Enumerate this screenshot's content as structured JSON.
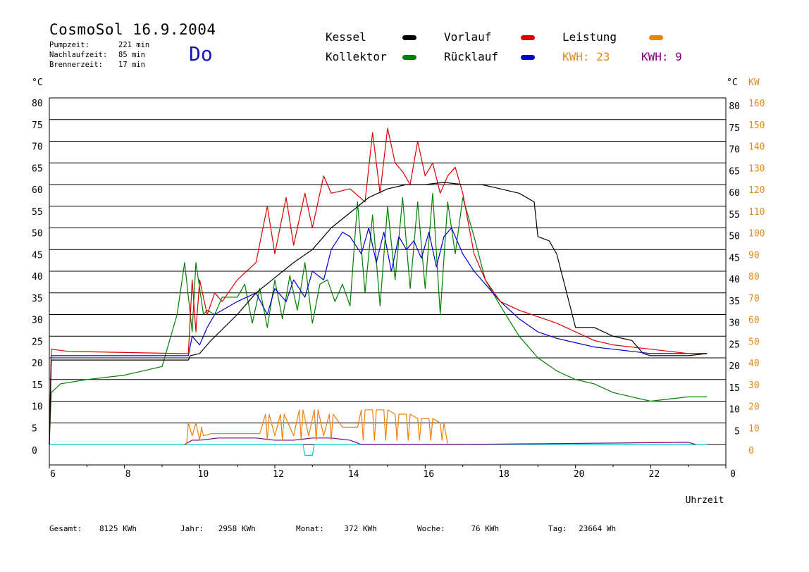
{
  "header": {
    "title": "CosmoSol 16.9.2004",
    "day": "Do",
    "info": [
      {
        "label": "Pumpzeit:",
        "value": "221 min"
      },
      {
        "label": "Nachlaufzeit:",
        "value": "85 min"
      },
      {
        "label": "Brennerzeit:",
        "value": "17 min"
      }
    ]
  },
  "legend": {
    "kessel": {
      "label": "Kessel",
      "color": "#000000"
    },
    "vorlauf": {
      "label": "Vorlauf",
      "color": "#dd0000"
    },
    "leistung": {
      "label": "Leistung",
      "color": "#f0800a"
    },
    "kollektor": {
      "label": "Kollektor",
      "color": "#008000"
    },
    "ruecklauf": {
      "label": "Rücklauf",
      "color": "#0000cc"
    },
    "kwh1": {
      "label": "KWH: 23",
      "color": "#e08a1a"
    },
    "kwh2": {
      "label": "KWH: 9",
      "color": "#800080"
    }
  },
  "footer": [
    {
      "label": "Gesamt:",
      "value": "8125 KWh"
    },
    {
      "label": "Jahr:",
      "value": "2958 KWh"
    },
    {
      "label": "Monat:",
      "value": "372 KWh"
    },
    {
      "label": "Woche:",
      "value": "76 KWh"
    },
    {
      "label": "Tag:",
      "value": "23664 Wh"
    }
  ],
  "chart_data": {
    "type": "line",
    "x_axis": {
      "label": "Uhrzeit",
      "ticks": [
        "6",
        "8",
        "10",
        "12",
        "14",
        "16",
        "18",
        "20",
        "22",
        "0"
      ],
      "range": [
        6,
        24
      ]
    },
    "y_left": {
      "unit": "°C",
      "ticks": [
        "0",
        "5",
        "10",
        "15",
        "20",
        "25",
        "30",
        "35",
        "40",
        "45",
        "50",
        "55",
        "60",
        "65",
        "70",
        "75",
        "80"
      ],
      "range": [
        0,
        80
      ]
    },
    "y_right_temp": {
      "unit": "°C",
      "ticks": [
        "5",
        "10",
        "15",
        "20",
        "25",
        "30",
        "35",
        "40",
        "45",
        "50",
        "55",
        "60",
        "65",
        "70",
        "75",
        "80"
      ]
    },
    "y_right_power": {
      "unit": "KW",
      "ticks": [
        "0",
        "10",
        "20",
        "30",
        "40",
        "50",
        "60",
        "70",
        "80",
        "90",
        "100",
        "110",
        "120",
        "130",
        "140",
        "150",
        "160"
      ],
      "range": [
        0,
        160
      ]
    },
    "grid": true,
    "series": [
      {
        "name": "Kessel",
        "color": "#000000",
        "x": [
          6.0,
          6.05,
          9.7,
          9.75,
          10.0,
          10.3,
          11.0,
          11.5,
          12.0,
          12.5,
          13.0,
          13.5,
          14.0,
          14.5,
          15.0,
          15.5,
          16.0,
          16.5,
          17.0,
          17.5,
          18.0,
          18.5,
          18.9,
          19.0,
          19.3,
          19.5,
          20.0,
          20.5,
          21.0,
          21.5,
          21.8,
          22.0,
          22.5,
          23.0,
          23.5
        ],
        "y": [
          0,
          19.5,
          19.5,
          20.5,
          21,
          24,
          30,
          35,
          38.5,
          42,
          45,
          50,
          53.5,
          57,
          59,
          60,
          60,
          60.5,
          60,
          60,
          59,
          58,
          56,
          48,
          47,
          44,
          27,
          27,
          25,
          24,
          21,
          20.5,
          20.5,
          20.5,
          21
        ]
      },
      {
        "name": "Vorlauf",
        "color": "#dd0000",
        "x": [
          6.0,
          6.05,
          6.5,
          9.5,
          9.7,
          9.8,
          9.9,
          10.0,
          10.2,
          10.4,
          10.6,
          11.0,
          11.5,
          11.8,
          12.0,
          12.3,
          12.5,
          12.8,
          13.0,
          13.3,
          13.5,
          14.0,
          14.4,
          14.6,
          14.8,
          15.0,
          15.2,
          15.4,
          15.6,
          15.8,
          16.0,
          16.2,
          16.4,
          16.6,
          16.8,
          17.0,
          17.3,
          17.6,
          18.0,
          18.5,
          19.0,
          19.5,
          20.0,
          20.5,
          21.0,
          21.5,
          22.0,
          22.5,
          23.0,
          23.5
        ],
        "y": [
          0,
          22,
          21.5,
          21,
          21,
          38,
          26,
          38,
          30,
          35,
          33,
          38,
          42,
          55,
          44,
          57,
          46,
          58,
          50,
          62,
          58,
          59,
          56,
          72,
          58,
          73,
          65,
          63,
          60,
          70,
          62,
          65,
          58,
          62,
          64,
          58,
          44,
          38,
          33,
          31,
          29.5,
          28,
          26,
          24,
          23,
          22.5,
          22,
          21.5,
          21,
          21
        ]
      },
      {
        "name": "Kollektor",
        "color": "#008000",
        "x": [
          6.0,
          6.05,
          6.3,
          7.0,
          8.0,
          9.0,
          9.4,
          9.6,
          9.8,
          9.9,
          10.1,
          10.2,
          10.4,
          10.6,
          11.0,
          11.2,
          11.4,
          11.6,
          11.8,
          12.0,
          12.2,
          12.4,
          12.6,
          12.8,
          13.0,
          13.2,
          13.4,
          13.6,
          13.8,
          14.0,
          14.2,
          14.4,
          14.6,
          14.8,
          15.0,
          15.2,
          15.4,
          15.6,
          15.8,
          16.0,
          16.2,
          16.4,
          16.6,
          16.8,
          17.0,
          17.3,
          17.6,
          18.0,
          18.5,
          19.0,
          19.5,
          20.0,
          20.5,
          21.0,
          21.5,
          22.0,
          22.5,
          23.0,
          23.5
        ],
        "y": [
          0,
          12,
          14,
          15,
          16,
          18,
          30,
          42,
          26,
          42,
          30,
          31,
          30,
          34,
          34,
          37,
          28,
          36,
          27,
          38,
          29,
          39,
          31,
          42,
          28,
          37,
          38,
          33,
          37,
          32,
          56,
          35,
          53,
          32,
          55,
          38,
          57,
          36,
          56,
          36,
          58,
          30,
          56,
          44,
          57,
          48,
          38,
          32,
          25,
          20,
          17,
          15,
          14,
          12,
          11,
          10,
          10.5,
          11,
          11
        ]
      },
      {
        "name": "Rücklauf",
        "color": "#0000cc",
        "x": [
          6.0,
          6.05,
          6.5,
          9.5,
          9.7,
          9.8,
          10.0,
          10.2,
          10.4,
          10.6,
          11.0,
          11.5,
          11.8,
          12.0,
          12.3,
          12.5,
          12.8,
          13.0,
          13.3,
          13.5,
          13.8,
          14.0,
          14.3,
          14.5,
          14.7,
          14.9,
          15.1,
          15.3,
          15.5,
          15.7,
          15.9,
          16.1,
          16.3,
          16.5,
          16.7,
          17.0,
          17.3,
          17.6,
          18.0,
          18.5,
          19.0,
          19.5,
          20.0,
          20.5,
          21.0,
          21.5,
          22.0,
          22.5,
          23.0,
          23.5
        ],
        "y": [
          0,
          20.5,
          20.5,
          20.5,
          20.5,
          25,
          23,
          27,
          30,
          31,
          33,
          35,
          30,
          36,
          33,
          38,
          34,
          40,
          38,
          45,
          49,
          48,
          44,
          50,
          42,
          49,
          40,
          48,
          45,
          47,
          43,
          49,
          41,
          48,
          50,
          44,
          40,
          37,
          33,
          29,
          26,
          24.5,
          23.5,
          22.5,
          22,
          21.5,
          21,
          21,
          21,
          21
        ]
      },
      {
        "name": "Leistung",
        "color": "#f0800a",
        "x": [
          9.65,
          9.7,
          9.8,
          9.9,
          10.0,
          10.05,
          10.1,
          10.3,
          10.5,
          11.0,
          11.6,
          11.75,
          11.8,
          11.85,
          12.0,
          12.15,
          12.2,
          12.25,
          12.5,
          12.65,
          12.7,
          12.75,
          12.9,
          13.05,
          13.1,
          13.15,
          13.3,
          13.45,
          13.5,
          13.55,
          13.8,
          14.2,
          14.3,
          14.35,
          14.4,
          14.6,
          14.65,
          14.7,
          14.9,
          14.95,
          15.0,
          15.2,
          15.25,
          15.3,
          15.5,
          15.55,
          15.6,
          15.8,
          15.85,
          15.9,
          16.1,
          16.15,
          16.2,
          16.4,
          16.45,
          16.5,
          16.6
        ],
        "y": [
          0,
          5,
          2,
          5,
          1,
          4,
          2,
          2.5,
          2.5,
          2.5,
          2.5,
          7,
          1,
          7,
          2,
          7,
          1,
          7,
          2,
          8,
          1,
          8,
          2,
          8,
          1,
          8,
          2,
          7,
          1,
          7,
          4,
          4,
          8,
          1,
          8,
          8,
          1,
          8,
          8,
          1,
          8,
          7,
          1,
          7,
          7,
          1,
          7,
          6,
          1,
          6,
          6,
          1,
          6,
          5,
          1,
          5,
          0
        ]
      },
      {
        "name": "Pumpe",
        "color": "#800080",
        "x": [
          9.6,
          9.8,
          10.0,
          10.5,
          11.0,
          11.5,
          12.0,
          12.5,
          13.0,
          13.5,
          14.0,
          14.3,
          14.5,
          16.8,
          23.0,
          23.2
        ],
        "y": [
          0,
          1,
          1,
          1.5,
          1.5,
          1.5,
          1,
          1,
          1.5,
          1.5,
          1,
          0,
          0,
          0,
          0.5,
          0
        ]
      },
      {
        "name": "Brenner",
        "color": "#00cccc",
        "x": [
          6.0,
          12.7,
          12.75,
          12.8,
          13.0,
          13.05,
          23.5
        ],
        "y": [
          0,
          0,
          0,
          -2.5,
          -2.5,
          0,
          0
        ]
      }
    ]
  }
}
